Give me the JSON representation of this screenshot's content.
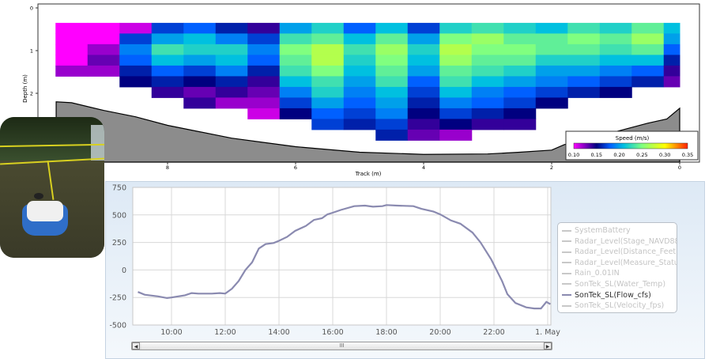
{
  "chart_data": [
    {
      "type": "heatmap",
      "xlabel": "Track (m)",
      "ylabel": "Depth (m)",
      "xlim": [
        9.75,
        0
      ],
      "ylim": [
        0,
        3.6
      ],
      "x_ticks": [
        "8",
        "6",
        "4",
        "2",
        "0"
      ],
      "y_ticks": [
        "0",
        "1",
        "2"
      ],
      "colorbar": {
        "title": "Speed (m/s)",
        "min": 0.1,
        "max": 0.35,
        "ticks": [
          "0.10",
          "0.15",
          "0.20",
          "0.25",
          "0.30",
          "0.35"
        ]
      },
      "bin_top_depth": 0.35,
      "bin_height": 0.25,
      "columns": [
        {
          "track_from": 9.75,
          "track_to": 9.25,
          "speeds": [
            0.1,
            0.1,
            0.1,
            0.1,
            0.12
          ]
        },
        {
          "track_from": 9.25,
          "track_to": 8.75,
          "speeds": [
            0.1,
            0.1,
            0.12,
            0.13,
            0.12
          ]
        },
        {
          "track_from": 8.75,
          "track_to": 8.25,
          "speeds": [
            0.11,
            0.17,
            0.19,
            0.18,
            0.16,
            0.15
          ]
        },
        {
          "track_from": 8.25,
          "track_to": 7.75,
          "speeds": [
            0.17,
            0.2,
            0.23,
            0.21,
            0.18,
            0.16,
            0.14
          ]
        },
        {
          "track_from": 7.75,
          "track_to": 7.25,
          "speeds": [
            0.18,
            0.21,
            0.22,
            0.2,
            0.17,
            0.15,
            0.13,
            0.14
          ]
        },
        {
          "track_from": 7.25,
          "track_to": 6.75,
          "speeds": [
            0.16,
            0.19,
            0.22,
            0.21,
            0.19,
            0.16,
            0.14,
            0.12
          ]
        },
        {
          "track_from": 6.75,
          "track_to": 6.25,
          "speeds": [
            0.14,
            0.17,
            0.19,
            0.18,
            0.16,
            0.14,
            0.13,
            0.12,
            0.11
          ]
        },
        {
          "track_from": 6.25,
          "track_to": 5.75,
          "speeds": [
            0.2,
            0.23,
            0.25,
            0.24,
            0.23,
            0.21,
            0.19,
            0.17,
            0.15
          ]
        },
        {
          "track_from": 5.75,
          "track_to": 5.25,
          "speeds": [
            0.22,
            0.24,
            0.27,
            0.27,
            0.25,
            0.23,
            0.22,
            0.2,
            0.18,
            0.17
          ]
        },
        {
          "track_from": 5.25,
          "track_to": 4.75,
          "speeds": [
            0.18,
            0.21,
            0.23,
            0.22,
            0.21,
            0.2,
            0.19,
            0.18,
            0.17,
            0.16
          ]
        },
        {
          "track_from": 4.75,
          "track_to": 4.25,
          "speeds": [
            0.21,
            0.24,
            0.26,
            0.25,
            0.24,
            0.23,
            0.21,
            0.2,
            0.19,
            0.17,
            0.16
          ]
        },
        {
          "track_from": 4.25,
          "track_to": 3.75,
          "speeds": [
            0.17,
            0.2,
            0.22,
            0.21,
            0.2,
            0.18,
            0.17,
            0.16,
            0.15,
            0.14,
            0.13
          ]
        },
        {
          "track_from": 3.75,
          "track_to": 3.25,
          "speeds": [
            0.22,
            0.25,
            0.27,
            0.26,
            0.24,
            0.23,
            0.21,
            0.19,
            0.17,
            0.15,
            0.12
          ]
        },
        {
          "track_from": 3.25,
          "track_to": 2.75,
          "speeds": [
            0.23,
            0.26,
            0.25,
            0.24,
            0.23,
            0.21,
            0.19,
            0.18,
            0.16,
            0.14
          ]
        },
        {
          "track_from": 2.75,
          "track_to": 2.25,
          "speeds": [
            0.22,
            0.24,
            0.25,
            0.24,
            0.22,
            0.2,
            0.18,
            0.17,
            0.15,
            0.14
          ]
        },
        {
          "track_from": 2.25,
          "track_to": 1.75,
          "speeds": [
            0.21,
            0.24,
            0.24,
            0.22,
            0.2,
            0.19,
            0.17,
            0.15
          ]
        },
        {
          "track_from": 1.75,
          "track_to": 1.25,
          "speeds": [
            0.23,
            0.25,
            0.24,
            0.22,
            0.2,
            0.18,
            0.16
          ]
        },
        {
          "track_from": 1.25,
          "track_to": 0.75,
          "speeds": [
            0.22,
            0.24,
            0.23,
            0.21,
            0.19,
            0.17,
            0.15
          ]
        },
        {
          "track_from": 0.75,
          "track_to": 0.25,
          "speeds": [
            0.24,
            0.26,
            0.24,
            0.21,
            0.18,
            0.16
          ]
        },
        {
          "track_from": 0.25,
          "track_to": 0.0,
          "speeds": [
            0.21,
            0.2,
            0.18,
            0.16,
            0.14,
            0.13
          ]
        }
      ],
      "bed_profile": {
        "track": [
          9.74,
          9.5,
          9.0,
          8.5,
          8.0,
          7.5,
          7.0,
          6.5,
          6.0,
          5.0,
          4.0,
          3.0,
          2.5,
          2.0,
          1.8,
          1.6,
          1.2,
          1.0,
          0.5,
          0.2,
          0.0
        ],
        "depth": [
          2.2,
          2.22,
          2.4,
          2.55,
          2.75,
          2.9,
          3.05,
          3.15,
          3.25,
          3.38,
          3.43,
          3.42,
          3.38,
          3.33,
          3.2,
          3.15,
          2.95,
          2.9,
          2.7,
          2.6,
          2.35
        ]
      }
    },
    {
      "type": "line",
      "ylim": [
        -500,
        750
      ],
      "y_ticks": [
        "750",
        "500",
        "250",
        "0",
        "-250",
        "-500"
      ],
      "x_ticks": [
        "10:00",
        "12:00",
        "14:00",
        "16:00",
        "18:00",
        "20:00",
        "22:00",
        "1. May"
      ],
      "grid": true,
      "legend_position": "right",
      "series": [
        {
          "name": "SonTek_SL(Flow_cfs)",
          "x": [
            "08:45",
            "09:00",
            "09:30",
            "09:50",
            "10:00",
            "10:30",
            "10:45",
            "11:00",
            "11:30",
            "11:48",
            "12:00",
            "12:15",
            "12:30",
            "12:45",
            "13:00",
            "13:15",
            "13:30",
            "13:48",
            "14:00",
            "14:18",
            "14:36",
            "15:00",
            "15:18",
            "15:36",
            "15:48",
            "16:00",
            "16:18",
            "16:48",
            "17:12",
            "17:30",
            "17:51",
            "18:00",
            "18:24",
            "19:00",
            "19:18",
            "19:45",
            "20:00",
            "20:24",
            "20:45",
            "21:12",
            "21:30",
            "21:54",
            "22:18",
            "22:30",
            "22:48",
            "23:12",
            "23:30",
            "23:45",
            "23:57",
            "00:06"
          ],
          "values": [
            -200,
            -225,
            -240,
            -255,
            -250,
            -230,
            -210,
            -215,
            -215,
            -210,
            -215,
            -170,
            -100,
            0,
            70,
            195,
            235,
            245,
            265,
            300,
            355,
            400,
            455,
            470,
            505,
            520,
            545,
            580,
            585,
            575,
            580,
            590,
            585,
            580,
            555,
            530,
            505,
            450,
            420,
            340,
            250,
            95,
            -100,
            -220,
            -300,
            -340,
            -350,
            -350,
            -290,
            -310
          ]
        }
      ]
    }
  ],
  "legend": {
    "items": [
      {
        "label": "SystemBattery",
        "active": false
      },
      {
        "label": "Radar_Level(Stage_NAVD88)",
        "active": false
      },
      {
        "label": "Radar_Level(Distance_Feet)",
        "active": false
      },
      {
        "label": "Radar_Level(Measure_Status)",
        "active": false
      },
      {
        "label": "Rain_0.01IN",
        "active": false
      },
      {
        "label": "SonTek_SL(Water_Temp)",
        "active": false
      },
      {
        "label": "SonTek_SL(Flow_cfs)",
        "active": true
      },
      {
        "label": "SonTek_SL(Velocity_fps)",
        "active": false
      }
    ]
  },
  "scrollbar": {
    "left_icon": "arrow-left-icon",
    "right_icon": "arrow-right-icon",
    "grip": "III"
  },
  "colors": {
    "line": "#8a8ab0",
    "bed": "#8c8c8c",
    "panel": "#dde9f5"
  }
}
